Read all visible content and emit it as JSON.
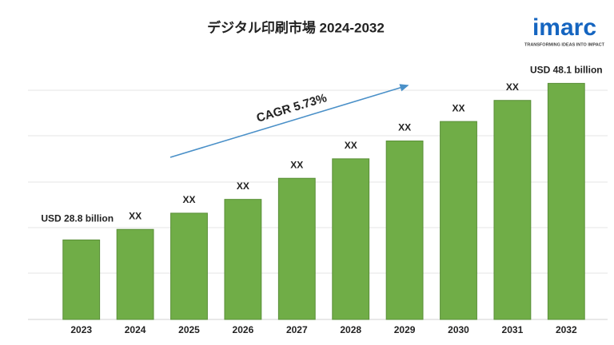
{
  "chart_data": {
    "type": "bar",
    "title": "デジタル印刷市場 2024-2032",
    "categories": [
      "2023",
      "2024",
      "2025",
      "2026",
      "2027",
      "2028",
      "2029",
      "2030",
      "2031",
      "2032"
    ],
    "values": [
      28.8,
      30.1,
      32.1,
      33.8,
      36.4,
      38.8,
      41.0,
      43.4,
      46.0,
      48.1
    ],
    "value_labels": [
      "USD 28.8 billion",
      "XX",
      "XX",
      "XX",
      "XX",
      "XX",
      "XX",
      "XX",
      "XX",
      "USD 48.1 billion"
    ],
    "color": "#70ad47",
    "ylim": [
      19,
      53
    ],
    "annotation": "CAGR 5.73%"
  },
  "logo": {
    "name": "imarc",
    "tagline": "TRANSFORMING IDEAS INTO IMPACT"
  }
}
